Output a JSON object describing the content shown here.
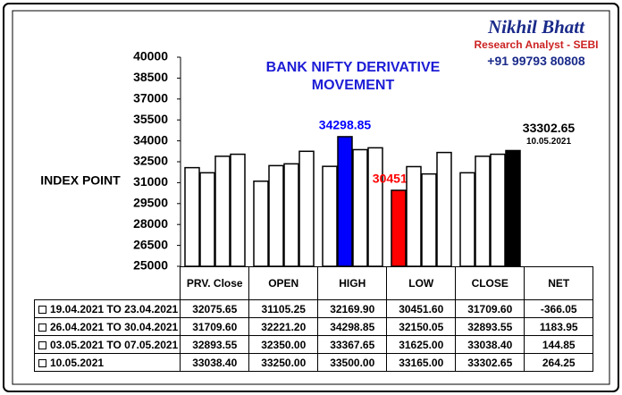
{
  "chart_data": {
    "type": "bar",
    "title": "BANK NIFTY DERIVATIVE MOVEMENT",
    "y_label": "INDEX POINT",
    "watermark": {
      "name": "Nikhil Bhatt",
      "role": "Research Analyst - SEBI",
      "phone": "+91 99793 80808"
    },
    "categories": [
      "PRV. Close",
      "OPEN",
      "HIGH",
      "LOW",
      "CLOSE",
      "NET"
    ],
    "ylim": [
      25000,
      40000
    ],
    "yticks": [
      25000,
      26500,
      28000,
      29500,
      31000,
      32500,
      34000,
      35500,
      37000,
      38500,
      40000
    ],
    "series": [
      {
        "name": "19.04.2021 TO 23.04.2021",
        "values": [
          32075.65,
          31105.25,
          32169.9,
          30451.6,
          31709.6,
          -366.05
        ],
        "value_labels": [
          "32075.65",
          "31105.25",
          "32169.90",
          "30451.60",
          "31709.60",
          "-366.05"
        ],
        "colors": [
          "#ffffff",
          "#ffffff",
          "#ffffff",
          "#ff0000",
          "#ffffff",
          "#ffffff"
        ],
        "labels_at": [
          3
        ]
      },
      {
        "name": "26.04.2021 TO 30.04.2021",
        "values": [
          31709.6,
          32221.2,
          34298.85,
          32150.05,
          32893.55,
          1183.95
        ],
        "value_labels": [
          "31709.60",
          "32221.20",
          "34298.85",
          "32150.05",
          "32893.55",
          "1183.95"
        ],
        "colors": [
          "#ffffff",
          "#ffffff",
          "#0000ff",
          "#ffffff",
          "#ffffff",
          "#ffffff"
        ],
        "labels_at": [
          2
        ]
      },
      {
        "name": "03.05.2021 TO 07.05.2021",
        "values": [
          32893.55,
          32350.0,
          33367.65,
          31625.0,
          33038.4,
          144.85
        ],
        "value_labels": [
          "32893.55",
          "32350.00",
          "33367.65",
          "31625.00",
          "33038.40",
          "144.85"
        ],
        "colors": [
          "#ffffff",
          "#ffffff",
          "#ffffff",
          "#ffffff",
          "#ffffff",
          "#ffffff"
        ],
        "labels_at": []
      },
      {
        "name": "10.05.2021",
        "values": [
          33038.4,
          33250.0,
          33500.0,
          33165.0,
          33302.65,
          264.25
        ],
        "value_labels": [
          "33038.40",
          "33250.00",
          "33500.00",
          "33165.00",
          "33302.65",
          "264.25"
        ],
        "colors": [
          "#ffffff",
          "#ffffff",
          "#ffffff",
          "#ffffff",
          "#000000",
          "#ffffff"
        ],
        "labels_at": [
          4
        ]
      }
    ]
  }
}
